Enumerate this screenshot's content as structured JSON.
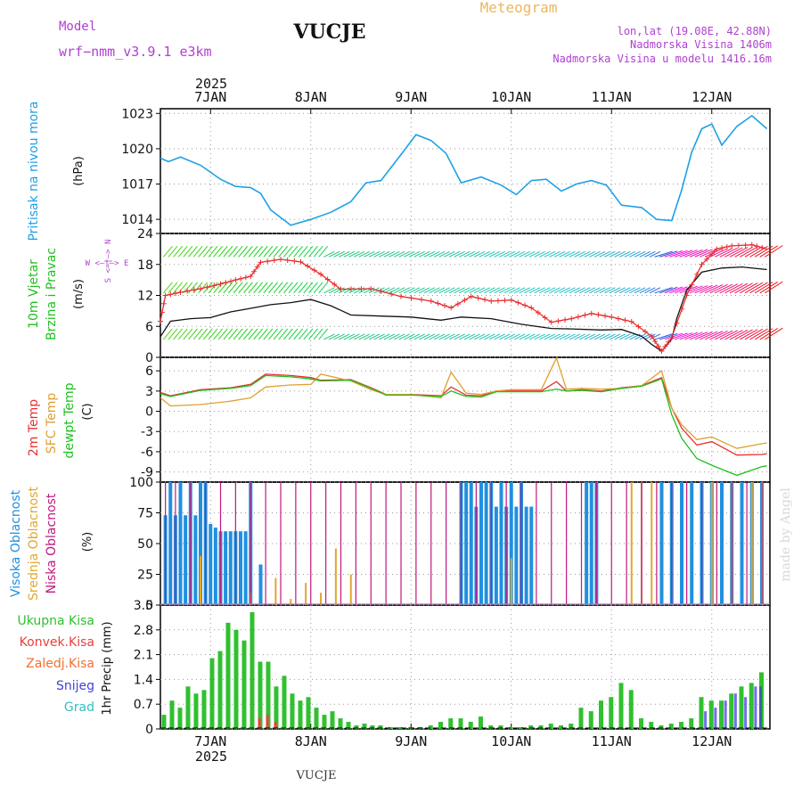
{
  "header": {
    "model_label": "Model",
    "model_name": "wrf−nmm_v3.9.1  e3km",
    "station": "VUCJE",
    "product": "Meteogram",
    "coords": "lon,lat (19.08E, 42.88N)",
    "elevation": "Nadmorska Visina 1406m",
    "model_elevation": "Nadmorska Visina u modelu 1416.16m",
    "watermark": "made by Angel",
    "footer_station": "VUCJE"
  },
  "colors": {
    "pressure": "#1ea0e6",
    "model": "#b040d0",
    "product": "#e8b860",
    "temp2m": "#e83030",
    "sfc": "#e0a030",
    "dew": "#20c020",
    "high": "#2090e0",
    "mid": "#e0a830",
    "low": "#c01880",
    "precip": "#30c030",
    "conv": "#e84040",
    "frz": "#f07030",
    "snow": "#4040e0",
    "hail": "#30c0c0"
  },
  "time_axis": {
    "year": "2025",
    "days": [
      "7JAN",
      "8JAN",
      "9JAN",
      "10JAN",
      "11JAN",
      "12JAN"
    ],
    "day_pos": [
      0.5,
      1.5,
      2.5,
      3.5,
      4.5,
      5.5
    ],
    "start": 0,
    "end": 6.08
  },
  "panels": {
    "pressure": {
      "label": "Pritisak na nivou mora",
      "unit": "(hPa)",
      "ticks": [
        "1023",
        "1020",
        "1017",
        "1014"
      ],
      "ylim": [
        1012.8,
        1023.4
      ]
    },
    "wind": {
      "label1": "10m Vjetar",
      "label2": "Brzina i Pravac",
      "unit": "(m/s)",
      "ticks": [
        "24",
        "18",
        "12",
        "6",
        "0"
      ],
      "ylim": [
        0,
        24
      ],
      "compass": "W  <—|—>  E",
      "compass2": "S <—|—> N"
    },
    "temperature": {
      "label1": "2m Temp",
      "label2": "SFC Temp",
      "label3": "dewpt Temp",
      "unit": "(C)",
      "ticks": [
        "6",
        "3",
        "0",
        "-3",
        "-6",
        "-9"
      ],
      "ylim": [
        -10.5,
        8
      ]
    },
    "cloud": {
      "label1": "Visoka Oblacnost",
      "label2": "Srednja Oblacnost",
      "label3": "Niska Oblacnost",
      "unit": "(%)",
      "ticks": [
        "100",
        "75",
        "50",
        "25",
        "0"
      ],
      "ylim": [
        0,
        100
      ]
    },
    "precip": {
      "label_total": "Ukupna Kisa",
      "label_conv": "Konvek.Kisa",
      "label_frz": "Zaledj.Kisa",
      "label_snow": "Snijeg",
      "label_hail": "Grad",
      "unit": "1hr Precip (mm)",
      "ticks": [
        "3.5",
        "2.8",
        "2.1",
        "1.4",
        "0.7",
        "0"
      ],
      "ylim": [
        0,
        3.5
      ]
    }
  },
  "chart_data": [
    {
      "type": "line",
      "title": "Pritisak na nivou mora",
      "ylabel": "hPa",
      "series": [
        {
          "name": "pressure",
          "x": [
            0,
            0.08,
            0.2,
            0.4,
            0.6,
            0.75,
            0.9,
            1.0,
            1.1,
            1.3,
            1.5,
            1.7,
            1.9,
            2.05,
            2.2,
            2.4,
            2.55,
            2.7,
            2.85,
            3.0,
            3.2,
            3.4,
            3.55,
            3.7,
            3.85,
            4.0,
            4.15,
            4.3,
            4.45,
            4.6,
            4.8,
            4.95,
            5.1,
            5.2,
            5.3,
            5.4,
            5.5,
            5.6,
            5.75,
            5.9,
            6.05
          ],
          "values": [
            1019.2,
            1018.9,
            1019.3,
            1018.6,
            1017.4,
            1016.8,
            1016.7,
            1016.2,
            1014.8,
            1013.5,
            1014.0,
            1014.6,
            1015.5,
            1017.1,
            1017.3,
            1019.5,
            1021.2,
            1020.7,
            1019.6,
            1017.1,
            1017.6,
            1016.9,
            1016.1,
            1017.3,
            1017.4,
            1016.4,
            1017.0,
            1017.3,
            1016.9,
            1015.2,
            1015.0,
            1014.0,
            1013.9,
            1016.5,
            1019.7,
            1021.7,
            1022.1,
            1020.3,
            1021.9,
            1022.8,
            1021.7
          ]
        }
      ]
    },
    {
      "type": "line",
      "title": "10m Vjetar Brzina i Pravac",
      "ylabel": "m/s",
      "series": [
        {
          "name": "wind_speed_black",
          "x": [
            0,
            0.1,
            0.3,
            0.5,
            0.7,
            0.9,
            1.1,
            1.3,
            1.5,
            1.7,
            1.9,
            2.2,
            2.5,
            2.8,
            3.0,
            3.3,
            3.6,
            3.9,
            4.1,
            4.4,
            4.6,
            4.8,
            4.9,
            5.0,
            5.1,
            5.15,
            5.25,
            5.4,
            5.6,
            5.8,
            6.05
          ],
          "values": [
            4,
            7,
            7.5,
            7.7,
            8.8,
            9.5,
            10.2,
            10.6,
            11.2,
            10.0,
            8.2,
            8.0,
            7.8,
            7.2,
            7.8,
            7.5,
            6.4,
            5.6,
            5.5,
            5.3,
            5.4,
            4.1,
            2.5,
            1.2,
            3.5,
            7.5,
            13.0,
            16.5,
            17.3,
            17.5,
            17.0
          ]
        },
        {
          "name": "wind_gust_red",
          "x": [
            0,
            0.05,
            0.2,
            0.4,
            0.6,
            0.75,
            0.9,
            1.0,
            1.2,
            1.4,
            1.6,
            1.8,
            2.1,
            2.4,
            2.7,
            2.9,
            3.1,
            3.3,
            3.5,
            3.7,
            3.9,
            4.1,
            4.3,
            4.5,
            4.7,
            4.9,
            5.0,
            5.1,
            5.25,
            5.4,
            5.55,
            5.7,
            5.9,
            6.05
          ],
          "values": [
            7,
            12,
            12.6,
            13.3,
            14.2,
            15.0,
            15.7,
            18.4,
            19.0,
            18.5,
            16.1,
            13.2,
            13.3,
            11.8,
            10.9,
            9.6,
            11.8,
            10.9,
            11.1,
            9.6,
            6.8,
            7.5,
            8.5,
            7.8,
            6.9,
            4.1,
            1.2,
            3.8,
            12.0,
            18.0,
            21.0,
            21.6,
            21.8,
            21.0
          ]
        }
      ]
    },
    {
      "type": "line",
      "title": "Temperature",
      "ylabel": "C",
      "series": [
        {
          "name": "2m Temp",
          "x": [
            0,
            0.1,
            0.4,
            0.7,
            0.9,
            1.05,
            1.3,
            1.5,
            1.6,
            1.9,
            2.1,
            2.25,
            2.5,
            2.8,
            2.9,
            3.05,
            3.2,
            3.35,
            3.5,
            3.8,
            3.95,
            4.05,
            4.2,
            4.4,
            4.6,
            4.8,
            5.0,
            5.1,
            5.2,
            5.35,
            5.5,
            5.75,
            6.0,
            6.05
          ],
          "values": [
            2.8,
            2.3,
            3.2,
            3.5,
            4.0,
            5.5,
            5.3,
            5.0,
            4.6,
            4.7,
            3.5,
            2.5,
            2.5,
            2.3,
            3.6,
            2.4,
            2.3,
            3.0,
            3.0,
            3.0,
            4.4,
            3.0,
            3.2,
            3.0,
            3.5,
            3.8,
            5.0,
            0.5,
            -2.5,
            -5.0,
            -4.5,
            -6.5,
            -6.4,
            -6.3
          ]
        },
        {
          "name": "SFC Temp",
          "x": [
            0,
            0.1,
            0.4,
            0.7,
            0.9,
            1.05,
            1.3,
            1.5,
            1.6,
            1.9,
            2.1,
            2.25,
            2.5,
            2.8,
            2.9,
            3.05,
            3.2,
            3.35,
            3.5,
            3.8,
            3.95,
            4.05,
            4.2,
            4.4,
            4.6,
            4.8,
            5.0,
            5.1,
            5.2,
            5.35,
            5.5,
            5.75,
            6.0,
            6.05
          ],
          "values": [
            2.0,
            0.8,
            1.0,
            1.5,
            2.0,
            3.6,
            3.9,
            4.0,
            5.5,
            4.5,
            3.2,
            2.5,
            2.5,
            2.0,
            5.8,
            2.7,
            2.5,
            3.0,
            3.2,
            3.2,
            7.9,
            3.3,
            3.4,
            3.3,
            3.4,
            3.8,
            6.0,
            0.5,
            -2.0,
            -4.2,
            -3.8,
            -5.5,
            -4.8,
            -4.7
          ]
        },
        {
          "name": "dewpt Temp",
          "x": [
            0,
            0.1,
            0.4,
            0.7,
            0.9,
            1.05,
            1.3,
            1.5,
            1.6,
            1.9,
            2.1,
            2.25,
            2.5,
            2.8,
            2.9,
            3.05,
            3.2,
            3.35,
            3.5,
            3.8,
            3.95,
            4.05,
            4.2,
            4.4,
            4.6,
            4.8,
            5.0,
            5.1,
            5.2,
            5.35,
            5.5,
            5.75,
            6.0,
            6.05
          ],
          "values": [
            2.6,
            2.2,
            3.1,
            3.4,
            3.8,
            5.3,
            5.1,
            4.8,
            4.5,
            4.6,
            3.4,
            2.4,
            2.4,
            2.2,
            3.0,
            2.2,
            2.1,
            2.9,
            2.9,
            2.9,
            3.3,
            3.0,
            3.1,
            2.9,
            3.4,
            3.7,
            4.8,
            -0.5,
            -4.0,
            -7.0,
            -8.0,
            -9.5,
            -8.2,
            -8.1
          ]
        }
      ]
    },
    {
      "type": "bar",
      "title": "Oblacnost",
      "ylabel": "%",
      "series": [
        {
          "name": "Visoka Oblacnost",
          "x": [
            0.05,
            0.1,
            0.15,
            0.2,
            0.25,
            0.3,
            0.35,
            0.4,
            0.45,
            0.5,
            0.55,
            0.6,
            0.65,
            0.7,
            0.75,
            0.8,
            0.85,
            0.9,
            1.0,
            3.0,
            3.05,
            3.1,
            3.15,
            3.2,
            3.25,
            3.3,
            3.35,
            3.4,
            3.45,
            3.5,
            3.55,
            3.6,
            3.65,
            3.7,
            4.25,
            4.3,
            4.35,
            5.0,
            5.1,
            5.2,
            5.3,
            5.4,
            5.5,
            5.6,
            5.7,
            5.8,
            5.9,
            6.0
          ],
          "values": [
            73,
            100,
            73,
            100,
            73,
            100,
            73,
            100,
            100,
            66,
            63,
            60,
            60,
            60,
            60,
            60,
            60,
            100,
            33,
            100,
            100,
            100,
            80,
            100,
            100,
            100,
            80,
            100,
            80,
            100,
            80,
            100,
            80,
            80,
            100,
            100,
            100,
            100,
            100,
            100,
            100,
            100,
            100,
            100,
            100,
            100,
            100,
            100
          ]
        },
        {
          "name": "Srednja Oblacnost",
          "x": [
            0.4,
            0.9,
            1.15,
            1.3,
            1.45,
            1.6,
            1.75,
            1.9,
            3.5,
            4.7,
            4.8,
            4.9,
            5.5,
            5.7,
            5.9,
            6.0
          ],
          "values": [
            40,
            10,
            22,
            5,
            18,
            10,
            46,
            25,
            38,
            100,
            100,
            100,
            100,
            100,
            100,
            100
          ]
        },
        {
          "name": "Niska Oblacnost",
          "x": [
            0.05,
            0.15,
            0.3,
            0.45,
            0.6,
            0.75,
            0.9,
            1.05,
            1.2,
            1.35,
            1.5,
            1.65,
            1.8,
            1.95,
            2.1,
            2.25,
            2.4,
            2.55,
            2.7,
            2.85,
            3.0,
            3.15,
            3.3,
            3.45,
            3.6,
            3.75,
            3.9,
            4.05,
            4.2,
            4.35,
            4.5,
            4.65,
            4.8,
            4.95,
            5.1,
            5.25,
            5.4,
            5.55,
            5.7,
            5.85,
            6.0
          ],
          "values": [
            100,
            100,
            100,
            100,
            100,
            100,
            100,
            100,
            100,
            100,
            100,
            100,
            100,
            100,
            100,
            100,
            100,
            100,
            100,
            100,
            100,
            100,
            100,
            100,
            100,
            100,
            100,
            100,
            100,
            100,
            100,
            100,
            100,
            100,
            100,
            100,
            100,
            100,
            100,
            100,
            100
          ]
        }
      ]
    },
    {
      "type": "bar",
      "title": "1hr Precip",
      "ylabel": "mm",
      "series": [
        {
          "name": "Ukupna Kisa",
          "x": [
            0.04,
            0.12,
            0.2,
            0.28,
            0.36,
            0.44,
            0.52,
            0.6,
            0.68,
            0.76,
            0.84,
            0.92,
            1.0,
            1.08,
            1.16,
            1.24,
            1.32,
            1.4,
            1.48,
            1.56,
            1.64,
            1.72,
            1.8,
            1.88,
            1.96,
            2.04,
            2.12,
            2.2,
            2.3,
            2.4,
            2.5,
            2.6,
            2.7,
            2.8,
            2.9,
            3.0,
            3.1,
            3.2,
            3.3,
            3.4,
            3.5,
            3.6,
            3.7,
            3.8,
            3.9,
            4.0,
            4.1,
            4.2,
            4.3,
            4.4,
            4.5,
            4.6,
            4.7,
            4.8,
            4.9,
            5.0,
            5.1,
            5.2,
            5.3,
            5.4,
            5.5,
            5.6,
            5.7,
            5.8,
            5.9,
            6.0
          ],
          "values": [
            0.4,
            0.8,
            0.6,
            1.2,
            1.0,
            1.1,
            2.0,
            2.2,
            3.0,
            2.8,
            2.5,
            3.3,
            1.9,
            1.9,
            1.2,
            1.5,
            1.0,
            0.8,
            0.9,
            0.6,
            0.4,
            0.5,
            0.3,
            0.2,
            0.1,
            0.15,
            0.1,
            0.1,
            0.05,
            0.05,
            0.05,
            0.05,
            0.1,
            0.2,
            0.3,
            0.3,
            0.2,
            0.35,
            0.1,
            0.1,
            0.05,
            0.05,
            0.1,
            0.1,
            0.15,
            0.1,
            0.15,
            0.6,
            0.5,
            0.8,
            0.9,
            1.3,
            1.1,
            0.3,
            0.2,
            0.1,
            0.15,
            0.2,
            0.3,
            0.9,
            0.8,
            0.8,
            1.0,
            1.2,
            1.3,
            1.6
          ]
        },
        {
          "name": "Konvek.Kisa",
          "x": [
            1.0,
            1.08,
            1.16
          ],
          "values": [
            0.3,
            0.4,
            0.2
          ]
        },
        {
          "name": "Snijeg",
          "x": [
            5.45,
            5.55,
            5.65,
            5.75,
            5.85,
            5.95,
            6.0
          ],
          "values": [
            0.5,
            0.6,
            0.8,
            1.0,
            0.9,
            1.2,
            1.2
          ]
        }
      ]
    }
  ]
}
